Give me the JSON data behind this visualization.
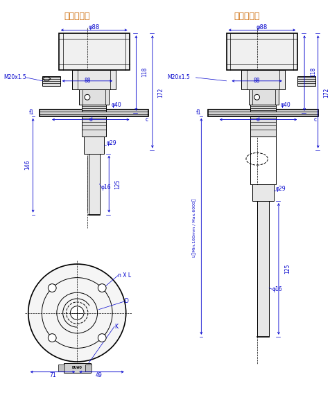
{
  "title_left": "常温标准型",
  "title_right": "常温加长型",
  "bg_color": "#ffffff",
  "line_color": "#000000",
  "dim_color": "#0000cd",
  "text_color": "#000000",
  "figsize": [
    4.76,
    5.83
  ],
  "dpi": 100,
  "dims": {
    "phi88": "φ88",
    "dim88": "88",
    "dim118": "118",
    "dim172": "172",
    "phi40": "φ40",
    "phi29": "φ29",
    "phi16": "φ16",
    "dim125": "125",
    "dim146": "146",
    "m20": "M20x1.5",
    "f1": "f1",
    "d_label": "d",
    "c_label": "c",
    "L_label": "L（Min.160mm / Max.6000）",
    "nxl": "n X L",
    "D_label": "D",
    "K_label": "K",
    "dim71": "71",
    "dim49": "49"
  }
}
